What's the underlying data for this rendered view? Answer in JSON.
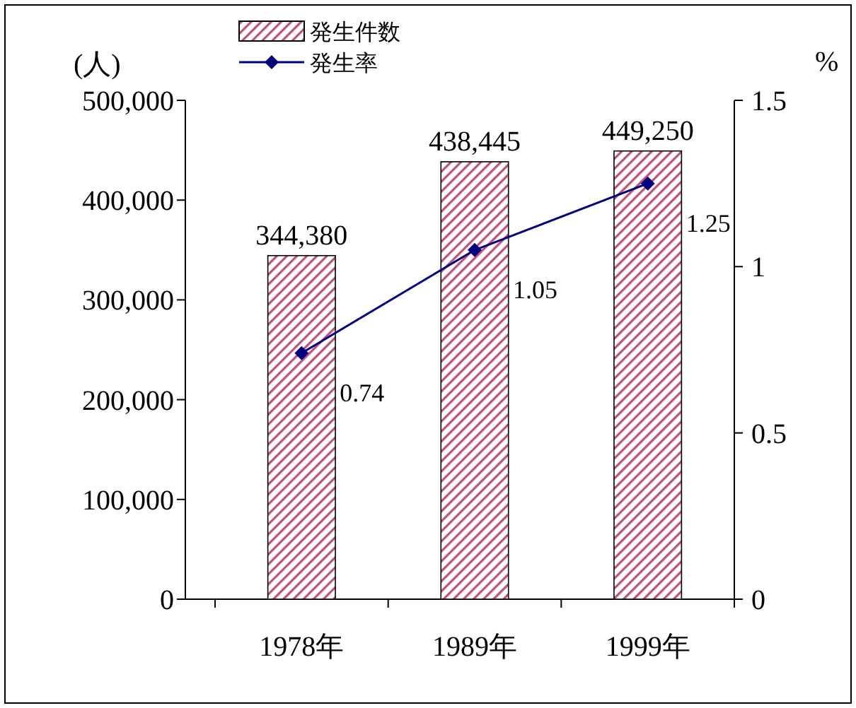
{
  "chart_data": {
    "type": "bar",
    "categories": [
      "1978年",
      "1989年",
      "1999年"
    ],
    "ylabel": "(人)",
    "y2label": "%",
    "ylim": [
      0,
      500000
    ],
    "yticks": [
      0,
      {
        "value": 100000,
        "label": "100,000"
      },
      {
        "value": 200000,
        "label": "200,000"
      },
      {
        "value": 300000,
        "label": "300,000"
      },
      {
        "value": 400000,
        "label": "400,000"
      },
      {
        "value": 500000,
        "label": "500,000"
      }
    ],
    "y2lim": [
      0,
      1.5
    ],
    "y2ticks": [
      0,
      0.5,
      1,
      1.5
    ],
    "legend": "top",
    "grid": false,
    "series": [
      {
        "name": "発生件数",
        "color": "#c0507a",
        "values": [
          344380,
          438445,
          449250
        ],
        "value_labels": [
          "344,380",
          "438,445",
          "449,250"
        ]
      },
      {
        "name": "発生率",
        "type": "line",
        "axis": "y2",
        "color": "#000080",
        "marker": "diamond",
        "values": [
          0.74,
          1.05,
          1.25
        ],
        "value_labels": [
          "0.74",
          "1.05",
          "1.25"
        ]
      }
    ]
  }
}
